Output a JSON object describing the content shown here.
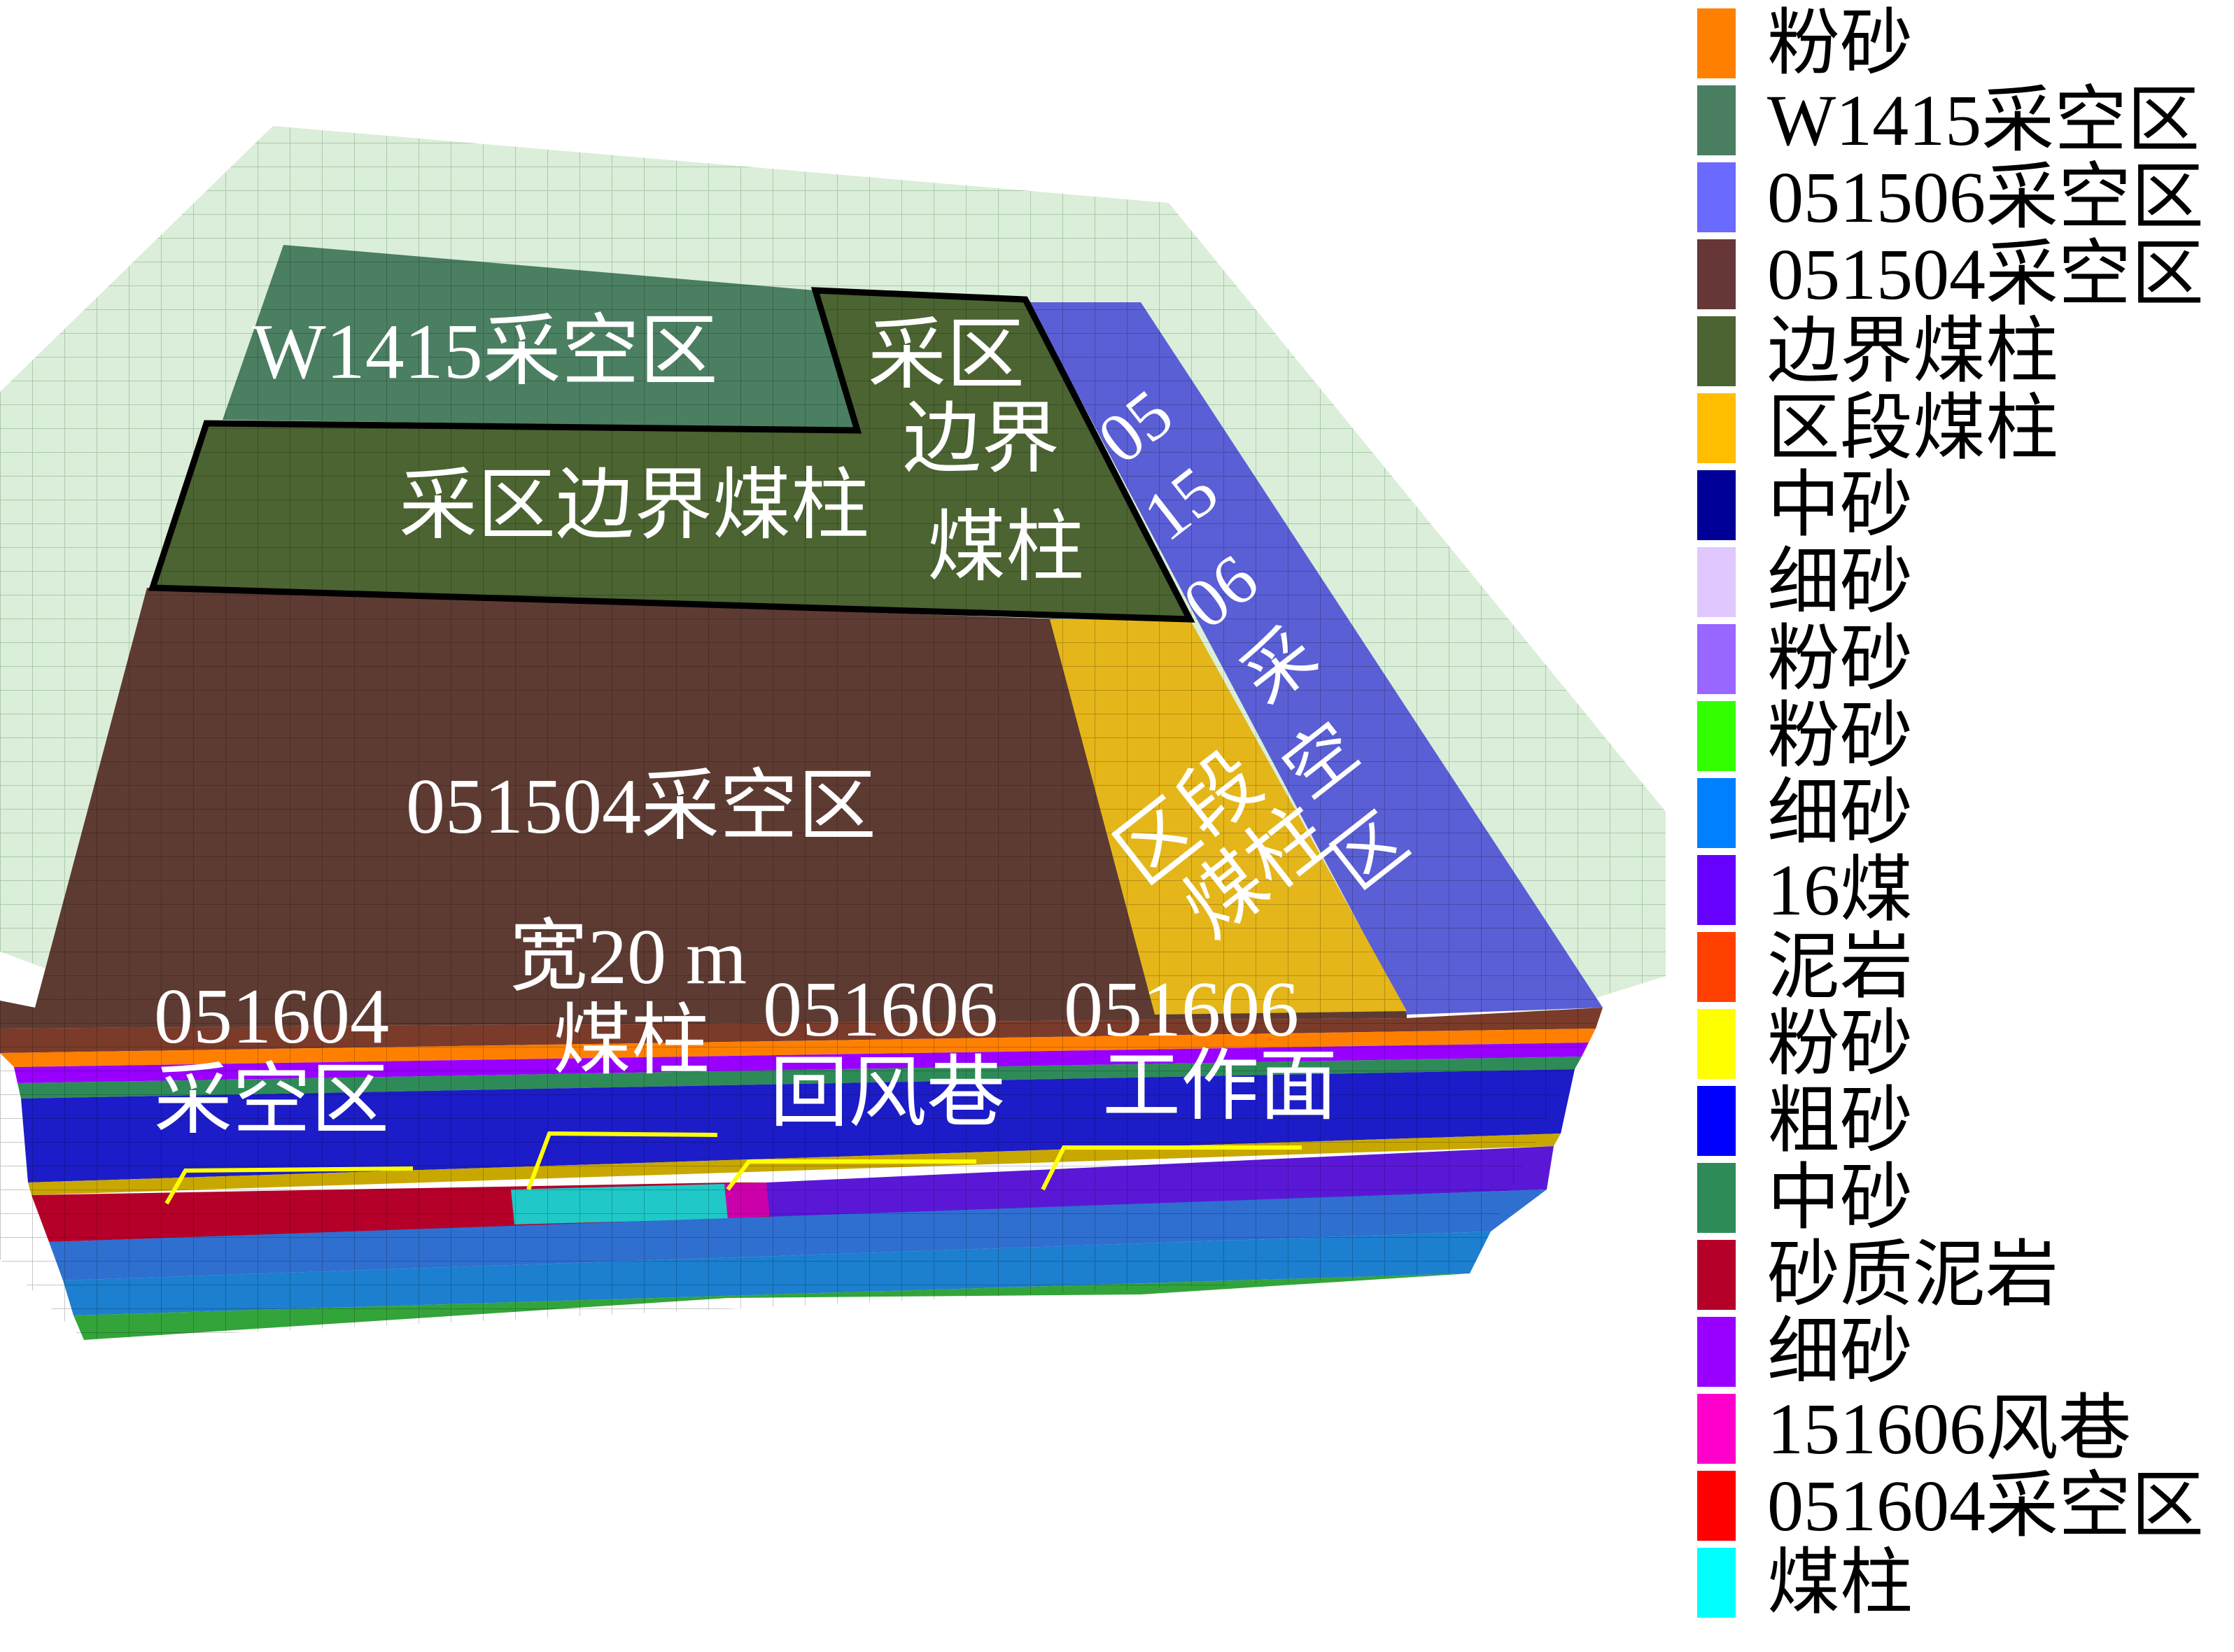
{
  "labels": {
    "w1415_goaf": "W1415采空区",
    "boundary_pillar_h": "采区边界煤柱",
    "boundary_pillar_v": [
      "采区",
      "边界",
      "煤柱"
    ],
    "goaf_051506_v": [
      "05",
      "15",
      "06",
      "采",
      "空",
      "区"
    ],
    "goaf_051504": "051504采空区",
    "section_pillar_v": [
      "区段",
      "煤柱"
    ],
    "goaf_051604": [
      "051604",
      "采空区"
    ],
    "pillar_20m": [
      "宽20 m",
      "煤柱"
    ],
    "airway_051606": [
      "051606",
      "回风巷"
    ],
    "face_051606": [
      "051606",
      "工作面"
    ]
  },
  "legend": [
    {
      "label": "粉砂",
      "color": "#ff8000"
    },
    {
      "label": "W1415采空区",
      "color": "#4b7f62"
    },
    {
      "label": "051506采空区",
      "color": "#6a6aff"
    },
    {
      "label": "051504采空区",
      "color": "#673636"
    },
    {
      "label": "边界煤柱",
      "color": "#4b6431"
    },
    {
      "label": "区段煤柱",
      "color": "#ffbf00"
    },
    {
      "label": "中砂",
      "color": "#000096"
    },
    {
      "label": "细砂",
      "color": "#e0c8ff"
    },
    {
      "label": "粉砂",
      "color": "#9966ff"
    },
    {
      "label": "粉砂",
      "color": "#33ff00"
    },
    {
      "label": "细砂",
      "color": "#0080ff"
    },
    {
      "label": "16煤",
      "color": "#6600ff"
    },
    {
      "label": "泥岩",
      "color": "#ff4000"
    },
    {
      "label": "粉砂",
      "color": "#ffff00"
    },
    {
      "label": "粗砂",
      "color": "#0000ff"
    },
    {
      "label": "中砂",
      "color": "#2e8b57"
    },
    {
      "label": "砂质泥岩",
      "color": "#b5002a"
    },
    {
      "label": "细砂",
      "color": "#9900ff"
    },
    {
      "label": "151606风巷",
      "color": "#ff00cc"
    },
    {
      "label": "051604采空区",
      "color": "#ff0000"
    },
    {
      "label": "煤柱",
      "color": "#00ffff"
    }
  ]
}
